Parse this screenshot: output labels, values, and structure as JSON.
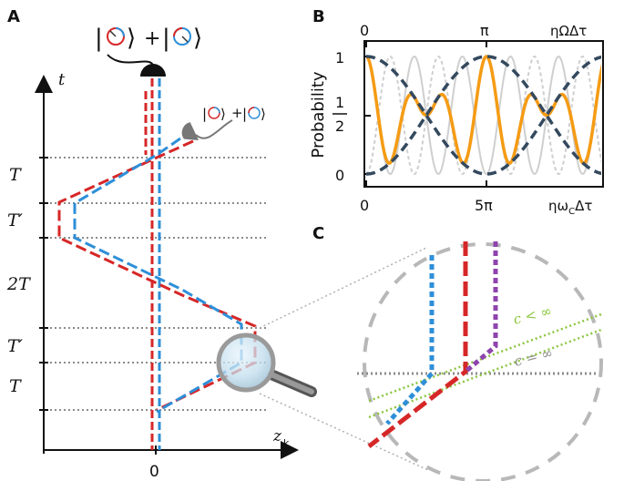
{
  "panels": {
    "a": "A",
    "b": "B",
    "c": "C"
  },
  "panel_a": {
    "top_ket_left": "|◷⟩",
    "top_plus": "+",
    "top_ket_right": "|◶⟩",
    "small_ket_expr": "|◷⟩ + |◶⟩",
    "t_axis": "t",
    "z_axis": "z",
    "z_sub": "k",
    "origin": "0",
    "intervals": [
      "T",
      "T′",
      "2T",
      "T′",
      "T"
    ]
  },
  "panel_b": {
    "ylabel": "Probability",
    "ytick_1": "1",
    "ytick_half_num": "1",
    "ytick_half_den": "2",
    "ytick_0": "0",
    "top_tick_0": "0",
    "top_tick_pi": "π",
    "top_label": "ηΩΔτ",
    "bottom_tick_0": "0",
    "bottom_tick_5pi": "5π",
    "bottom_label": "ηω",
    "bottom_sub": "C",
    "bottom_tail": "Δτ"
  },
  "panel_c": {
    "label_c_lt": "c < ∞",
    "label_c_eq": "c = ∞"
  },
  "colors": {
    "red": "#d62728",
    "blue": "#2e8fd8",
    "purple": "#8e44ad",
    "orange": "#f59b14",
    "navy": "#34495e",
    "green": "#8cc63f",
    "gray": "#8c8c8c"
  }
}
